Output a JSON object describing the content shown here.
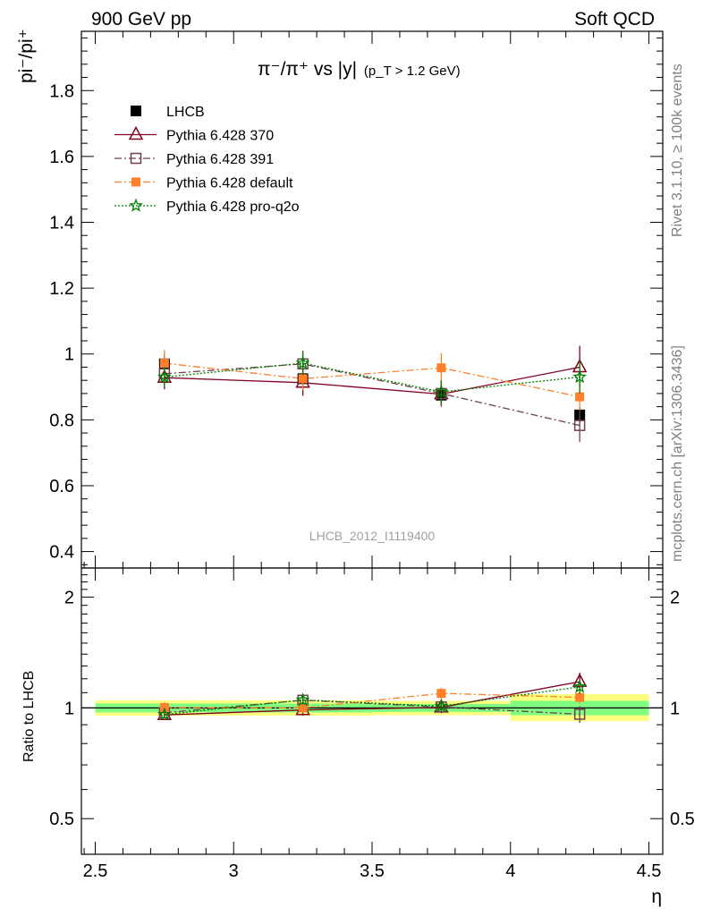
{
  "header": {
    "left": "900 GeV pp",
    "right": "Soft QCD"
  },
  "side_labels": {
    "rivet": "Rivet 3.1.10, ≥ 100k events",
    "mcplots": "mcplots.cern.ch [arXiv:1306.3436]"
  },
  "colors": {
    "data": "#000000",
    "p370": "#800020",
    "p391": "#704050",
    "default": "#ff7f2a",
    "proq2o": "#008000",
    "band_yellow": "#ffff80",
    "band_green": "#80ff80"
  },
  "chart_data": [
    {
      "type": "scatter",
      "title_main": "π⁻/π⁺ vs |y|",
      "title_sub": "(p_T > 1.2 GeV)",
      "ylabel": "pi⁻/pi⁺",
      "watermark": "LHCB_2012_I1119400",
      "x": [
        2.75,
        3.25,
        3.75,
        4.25
      ],
      "ylim": [
        0.35,
        1.98
      ],
      "yticks": [
        "0.4",
        "0.6",
        "0.8",
        "1",
        "1.2",
        "1.4",
        "1.6",
        "1.8"
      ],
      "legend_position": "top-left",
      "series": [
        {
          "name": "LHCB",
          "key": "data",
          "values": [
            0.97,
            0.925,
            0.875,
            0.815
          ],
          "errors": [
            0.03,
            0.03,
            0.03,
            0.025
          ]
        },
        {
          "name": "Pythia 6.428 370",
          "key": "p370",
          "values": [
            0.928,
            0.913,
            0.878,
            0.96
          ],
          "errors": [
            0.035,
            0.04,
            0.035,
            0.065
          ]
        },
        {
          "name": "Pythia 6.428 391",
          "key": "p391",
          "values": [
            0.94,
            0.97,
            0.88,
            0.783
          ],
          "errors": [
            0.035,
            0.04,
            0.04,
            0.05
          ]
        },
        {
          "name": "Pythia 6.428 default",
          "key": "default",
          "values": [
            0.972,
            0.925,
            0.958,
            0.87
          ],
          "errors": [
            0.04,
            0.035,
            0.045,
            0.04
          ]
        },
        {
          "name": "Pythia 6.428 pro-q2o",
          "key": "proq2o",
          "values": [
            0.93,
            0.972,
            0.885,
            0.93
          ],
          "errors": [
            0.03,
            0.035,
            0.035,
            0.05
          ]
        }
      ]
    },
    {
      "type": "scatter",
      "ylabel": "Ratio to LHCB",
      "xlabel": "η",
      "x": [
        2.75,
        3.25,
        3.75,
        4.25
      ],
      "xlim": [
        2.45,
        4.55
      ],
      "xticks": [
        "2.5",
        "3",
        "3.5",
        "4",
        "4.5"
      ],
      "ylim": [
        0.4,
        2.4
      ],
      "yscale": "log",
      "yticks": [
        "0.5",
        "1",
        "2"
      ],
      "bands": [
        {
          "xmin": 2.5,
          "xmax": 3.0,
          "green": [
            0.972,
            1.028
          ],
          "yellow": [
            0.952,
            1.048
          ]
        },
        {
          "xmin": 3.0,
          "xmax": 3.5,
          "green": [
            0.972,
            1.028
          ],
          "yellow": [
            0.952,
            1.048
          ]
        },
        {
          "xmin": 3.5,
          "xmax": 4.0,
          "green": [
            0.975,
            1.025
          ],
          "yellow": [
            0.955,
            1.045
          ]
        },
        {
          "xmin": 4.0,
          "xmax": 4.5,
          "green": [
            0.955,
            1.045
          ],
          "yellow": [
            0.92,
            1.09
          ]
        }
      ],
      "series": [
        {
          "name": "Pythia 6.428 370",
          "key": "p370",
          "values": [
            0.957,
            0.987,
            1.003,
            1.178
          ],
          "errors": [
            0.02,
            0.035,
            0.035,
            0.07
          ]
        },
        {
          "name": "Pythia 6.428 391",
          "key": "p391",
          "values": [
            0.97,
            1.049,
            1.006,
            0.961
          ],
          "errors": [
            0.02,
            0.03,
            0.03,
            0.05
          ]
        },
        {
          "name": "Pythia 6.428 default",
          "key": "default",
          "values": [
            1.002,
            1.0,
            1.095,
            1.068
          ],
          "errors": [
            0.035,
            0.03,
            0.04,
            0.04
          ]
        },
        {
          "name": "Pythia 6.428 pro-q2o",
          "key": "proq2o",
          "values": [
            0.959,
            1.051,
            1.011,
            1.141
          ],
          "errors": [
            0.02,
            0.03,
            0.03,
            0.05
          ]
        }
      ]
    }
  ]
}
